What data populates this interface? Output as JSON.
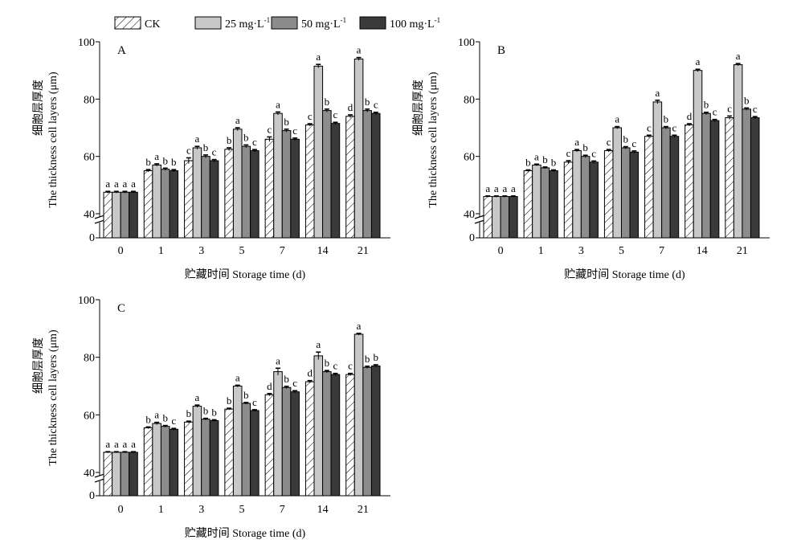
{
  "legend": [
    {
      "label": "CK",
      "sup": ""
    },
    {
      "label": "25 mg·L",
      "sup": "-1"
    },
    {
      "label": "50 mg·L",
      "sup": "-1"
    },
    {
      "label": "100 mg·L",
      "sup": "-1"
    }
  ],
  "colors": {
    "CK": "#ffffff",
    "25 mg·L-1": "#c8c8c8",
    "50 mg·L-1": "#8c8c8c",
    "100 mg·L-1": "#3a3a3a"
  },
  "chart_data": [
    {
      "type": "bar",
      "panel_label": "A",
      "ylabel_cn": "细胞层厚度",
      "ylabel_en": "The thickness cell layers (μm)",
      "xlabel": "贮藏时间 Storage time (d)",
      "categories": [
        "0",
        "1",
        "3",
        "5",
        "7",
        "14",
        "21"
      ],
      "y_ticks": [
        "40",
        "60",
        "80",
        "100"
      ],
      "y_zero_label": "0",
      "ylim": [
        40,
        100
      ],
      "axis_break": true,
      "series": [
        {
          "name": "CK",
          "values": [
            47.5,
            55,
            58.5,
            62.5,
            66,
            71,
            74
          ],
          "errors": [
            0.3,
            0.4,
            1.0,
            0.5,
            0.8,
            0.4,
            0.5
          ],
          "letters": [
            "a",
            "b",
            "c",
            "b",
            "c",
            "c",
            "d"
          ]
        },
        {
          "name": "25 mg·L-1",
          "values": [
            47.5,
            57,
            63,
            69.5,
            75,
            91.5,
            94
          ],
          "errors": [
            0.3,
            0.4,
            0.5,
            0.5,
            0.5,
            0.6,
            0.5
          ],
          "letters": [
            "a",
            "a",
            "a",
            "a",
            "a",
            "a",
            "a"
          ]
        },
        {
          "name": "50 mg·L-1",
          "values": [
            47.5,
            55.5,
            60,
            63.5,
            69,
            76,
            76
          ],
          "errors": [
            0.3,
            0.4,
            0.5,
            0.5,
            0.5,
            0.5,
            0.5
          ],
          "letters": [
            "a",
            "b",
            "b",
            "b",
            "b",
            "b",
            "b"
          ]
        },
        {
          "name": "100 mg·L-1",
          "values": [
            47.5,
            55,
            58.5,
            62,
            66,
            71.5,
            75
          ],
          "errors": [
            0.3,
            0.4,
            0.4,
            0.4,
            0.4,
            0.4,
            0.4
          ],
          "letters": [
            "a",
            "b",
            "c",
            "c",
            "c",
            "c",
            "c"
          ]
        }
      ]
    },
    {
      "type": "bar",
      "panel_label": "B",
      "ylabel_cn": "细胞层厚度",
      "ylabel_en": "The thickness cell layers (μm)",
      "xlabel": "贮藏时间 Storage time (d)",
      "categories": [
        "0",
        "1",
        "3",
        "5",
        "7",
        "14",
        "21"
      ],
      "y_ticks": [
        "40",
        "60",
        "80",
        "100"
      ],
      "y_zero_label": "0",
      "ylim": [
        40,
        100
      ],
      "axis_break": true,
      "series": [
        {
          "name": "CK",
          "values": [
            46,
            55,
            58,
            62,
            67,
            71,
            73.5
          ],
          "errors": [
            0.2,
            0.3,
            0.5,
            0.4,
            0.4,
            0.4,
            0.6
          ],
          "letters": [
            "a",
            "b",
            "c",
            "c",
            "c",
            "d",
            "c"
          ]
        },
        {
          "name": "25 mg·L-1",
          "values": [
            46,
            57,
            62,
            70,
            79,
            90,
            92
          ],
          "errors": [
            0.2,
            0.3,
            0.4,
            0.4,
            0.6,
            0.4,
            0.4
          ],
          "letters": [
            "a",
            "a",
            "a",
            "a",
            "a",
            "a",
            "a"
          ]
        },
        {
          "name": "50 mg·L-1",
          "values": [
            46,
            56,
            60,
            63,
            70,
            75,
            76.5
          ],
          "errors": [
            0.2,
            0.3,
            0.4,
            0.4,
            0.4,
            0.4,
            0.4
          ],
          "letters": [
            "a",
            "b",
            "b",
            "b",
            "b",
            "b",
            "b"
          ]
        },
        {
          "name": "100 mg·L-1",
          "values": [
            46,
            55,
            58,
            61.5,
            67,
            72.5,
            73.5
          ],
          "errors": [
            0.2,
            0.3,
            0.4,
            0.4,
            0.4,
            0.4,
            0.4
          ],
          "letters": [
            "a",
            "b",
            "c",
            "c",
            "c",
            "c",
            "c"
          ]
        }
      ]
    },
    {
      "type": "bar",
      "panel_label": "C",
      "ylabel_cn": "细胞层厚度",
      "ylabel_en": "The thickness cell layers (μm)",
      "xlabel": "贮藏时间 Storage time (d)",
      "categories": [
        "0",
        "1",
        "3",
        "5",
        "7",
        "14",
        "21"
      ],
      "y_ticks": [
        "40",
        "60",
        "80",
        "100"
      ],
      "y_zero_label": "0",
      "ylim": [
        40,
        100
      ],
      "axis_break": true,
      "series": [
        {
          "name": "CK",
          "values": [
            47,
            55.5,
            57.5,
            62,
            67,
            71.5,
            74
          ],
          "errors": [
            0.2,
            0.3,
            0.3,
            0.3,
            0.4,
            0.4,
            0.4
          ],
          "letters": [
            "a",
            "b",
            "b",
            "b",
            "d",
            "d",
            "c"
          ]
        },
        {
          "name": "25 mg·L-1",
          "values": [
            47,
            57,
            63,
            70,
            75,
            80.5,
            88
          ],
          "errors": [
            0.2,
            0.4,
            0.4,
            0.3,
            1.2,
            1.3,
            0.3
          ],
          "letters": [
            "a",
            "a",
            "a",
            "a",
            "a",
            "a",
            "a"
          ]
        },
        {
          "name": "50 mg·L-1",
          "values": [
            47,
            56,
            58.5,
            64,
            69.5,
            75,
            76.5
          ],
          "errors": [
            0.2,
            0.3,
            0.3,
            0.3,
            0.4,
            0.4,
            0.4
          ],
          "letters": [
            "a",
            "b",
            "b",
            "b",
            "b",
            "b",
            "b"
          ]
        },
        {
          "name": "100 mg·L-1",
          "values": [
            47,
            55,
            58,
            61.5,
            68,
            74,
            77
          ],
          "errors": [
            0.2,
            0.3,
            0.3,
            0.3,
            0.4,
            0.4,
            0.4
          ],
          "letters": [
            "a",
            "c",
            "b",
            "c",
            "c",
            "c",
            "b"
          ]
        }
      ]
    }
  ]
}
